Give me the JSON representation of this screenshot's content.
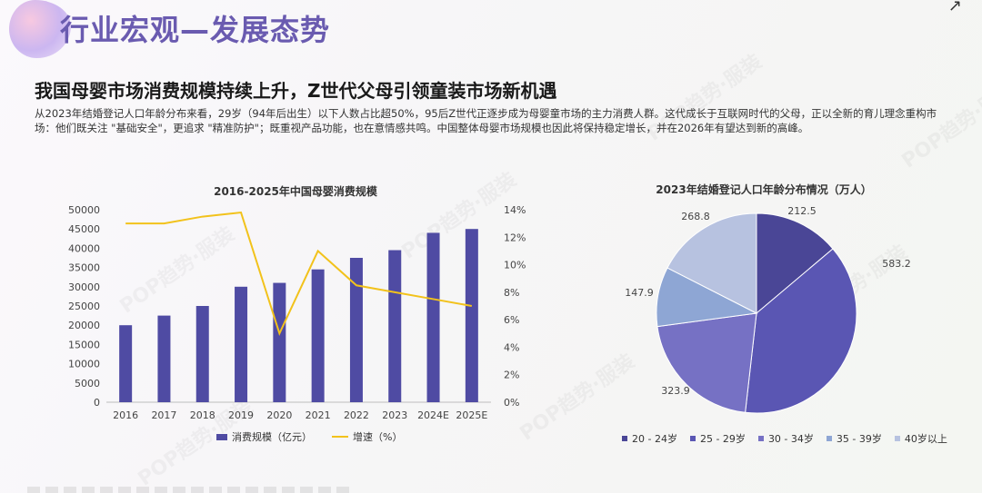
{
  "page": {
    "title": "行业宏观—发展态势",
    "headline": "我国母婴市场消费规模持续上升，Z世代父母引领童装市场新机遇",
    "paragraph": "从2023年结婚登记人口年龄分布来看，29岁（94年后出生）以下人数占比超50%，95后Z世代正逐步成为母婴童市场的主力消费人群。这代成长于互联网时代的父母，正以全新的育儿理念重构市场：他们既关注 \"基础安全\"，更追求 \"精准防护\"；既重视产品功能，也在意情感共鸣。中国整体母婴市场规模也因此将保持稳定增长，并在2026年有望达到新的高峰。",
    "watermark": "POP趋势·服装"
  },
  "colors": {
    "title": "#6a5bb0",
    "bar": "#4f4ba3",
    "line": "#f2c21b",
    "pie": [
      "#4a4696",
      "#5a56b3",
      "#7671c4",
      "#8ea6d4",
      "#b7c2e0"
    ]
  },
  "chart_data": [
    {
      "type": "bar",
      "title": "2016-2025年中国母婴消费规模",
      "categories": [
        "2016",
        "2017",
        "2018",
        "2019",
        "2020",
        "2021",
        "2022",
        "2023",
        "2024E",
        "2025E"
      ],
      "series": [
        {
          "name": "消费规模（亿元）",
          "type": "bar",
          "axis": "left",
          "values": [
            20000,
            22500,
            25000,
            30000,
            31000,
            34500,
            37500,
            39500,
            44000,
            45000
          ]
        },
        {
          "name": "增速（%）",
          "type": "line",
          "axis": "right",
          "values": [
            13,
            13,
            13.5,
            13.8,
            5,
            11,
            8.5,
            8,
            7.5,
            7
          ]
        }
      ],
      "ylim": [
        0,
        50000
      ],
      "yticks": [
        "0",
        "5000",
        "10000",
        "15000",
        "20000",
        "25000",
        "30000",
        "35000",
        "40000",
        "45000",
        "50000"
      ],
      "y2lim": [
        0,
        14
      ],
      "y2ticks": [
        "0%",
        "2%",
        "4%",
        "6%",
        "8%",
        "10%",
        "12%",
        "14%"
      ],
      "legend": "bottom",
      "grid": false
    },
    {
      "type": "pie",
      "title": "2023年结婚登记人口年龄分布情况（万人）",
      "labels": [
        "20 - 24岁",
        "25 - 29岁",
        "30 - 34岁",
        "35 - 39岁",
        "40岁以上"
      ],
      "values": [
        212.5,
        583.2,
        323.9,
        147.9,
        268.8
      ],
      "value_labels": [
        "212.5",
        "583.2",
        "323.9",
        "147.9",
        "268.8"
      ],
      "legend": "bottom"
    }
  ]
}
